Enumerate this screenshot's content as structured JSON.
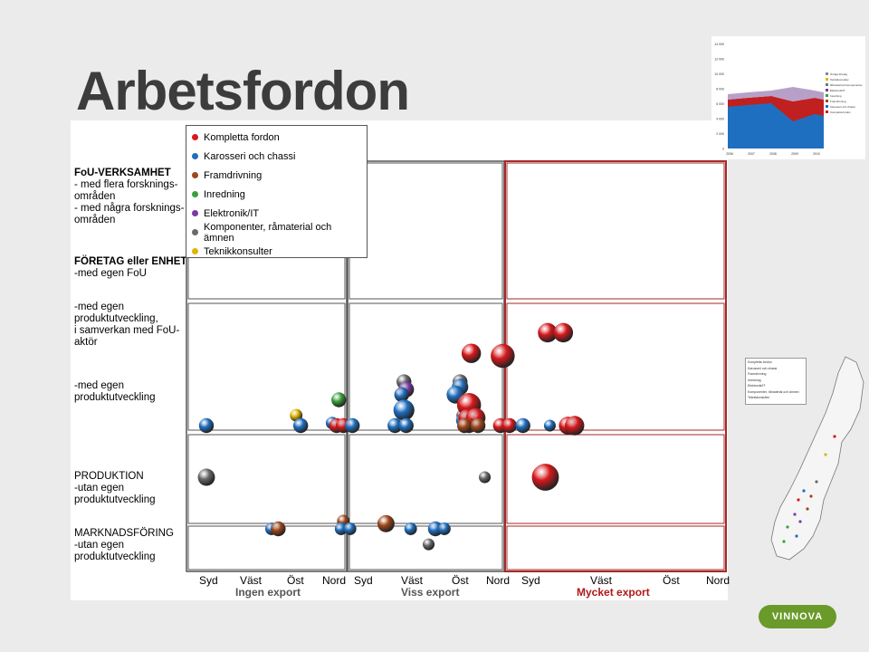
{
  "title": "Arbetsfordon",
  "row_labels": [
    {
      "lines": [
        "FoU-VERKSAMHET",
        "- med flera forsknings-",
        "områden",
        "- med några forsknings-",
        "områden"
      ],
      "bold_first": true
    },
    {
      "lines": [
        "FÖRETAG eller ENHET",
        "-med egen FoU"
      ],
      "bold_first": true
    },
    {
      "lines": [
        "-med egen",
        "produktutveckling,",
        "i samverkan med FoU-",
        "aktör"
      ],
      "bold_first": false
    },
    {
      "lines": [
        "-med egen",
        "produktutveckling"
      ],
      "bold_first": false
    },
    {
      "lines": [
        "PRODUKTION",
        "-utan egen",
        "produktutveckling"
      ],
      "bold_first": false
    },
    {
      "lines": [
        "MARKNADSFÖRING",
        "-utan egen",
        "produktutveckling"
      ],
      "bold_first": false
    }
  ],
  "legend": [
    {
      "label": "Kompletta fordon",
      "color": "#d7191c"
    },
    {
      "label": "Karosseri och chassi",
      "color": "#1f6fc0"
    },
    {
      "label": "Framdrivning",
      "color": "#a0461a"
    },
    {
      "label": "Inredning",
      "color": "#3aa13a"
    },
    {
      "label": "Elektronik/IT",
      "color": "#7a3aa8"
    },
    {
      "label": "Komponenter, råmaterial och ämnen",
      "color": "#6a6a6a"
    },
    {
      "label": "Teknikkonsulter",
      "color": "#e0b400"
    }
  ],
  "x_labels": [
    "Syd",
    "Väst",
    "Öst",
    "Nord",
    "Syd",
    "Väst",
    "Öst",
    "Nord",
    "Syd",
    "Väst",
    "Öst",
    "Nord"
  ],
  "groups": [
    {
      "label": "Ingen export",
      "color": "#555555"
    },
    {
      "label": "Viss export",
      "color": "#555555"
    },
    {
      "label": "Mycket export",
      "color": "#b01818"
    }
  ],
  "mini_chart": {
    "y_ticks": [
      "0",
      "2 000",
      "4 000",
      "6 000",
      "8 000",
      "10 000",
      "12 000",
      "14 000"
    ],
    "x_ticks": [
      "2006",
      "2007",
      "2008",
      "2009",
      "2010"
    ],
    "legend": [
      "Övriga företag",
      "Teknikkonsulter",
      "Råmaterial & komponenter",
      "Elektronik/IT",
      "Inredning",
      "Framdrivning",
      "Karosseri och chassi",
      "Kompletta fordon"
    ]
  },
  "logo_text": "VINNOVA",
  "chart_data": {
    "type": "scatter",
    "title": "Arbetsfordon",
    "x_categories": [
      "Ingen export Syd",
      "Ingen export Väst",
      "Ingen export Öst",
      "Ingen export Nord",
      "Viss export Syd",
      "Viss export Väst",
      "Viss export Öst",
      "Viss export Nord",
      "Mycket export Syd",
      "Mycket export Väst",
      "Mycket export Öst",
      "Mycket export Nord"
    ],
    "y_categories": [
      "MARKNADSFÖRING",
      "PRODUKTION",
      "-med egen produktutveckling",
      "-med egen produktutveckling, i samverkan med FoU-aktör",
      "FÖRETAG eller ENHET -med egen FoU",
      "FoU-VERKSAMHET"
    ],
    "points": [
      {
        "type": "Karosseri och chassi",
        "x": 0.0,
        "y": 2,
        "size": 1
      },
      {
        "type": "Teknikkonsulter",
        "x": 2.0,
        "y": 2.2,
        "size": 0.7
      },
      {
        "type": "Karosseri och chassi",
        "x": 2.1,
        "y": 2,
        "size": 1
      },
      {
        "type": "Inredning",
        "x": 2.95,
        "y": 2.5,
        "size": 1
      },
      {
        "type": "Karosseri och chassi",
        "x": 2.8,
        "y": 2.05,
        "size": 0.7
      },
      {
        "type": "Kompletta fordon",
        "x": 2.9,
        "y": 2,
        "size": 1
      },
      {
        "type": "Kompletta fordon",
        "x": 3.05,
        "y": 2,
        "size": 1
      },
      {
        "type": "Karosseri och chassi",
        "x": 3.25,
        "y": 2,
        "size": 1
      },
      {
        "type": "Komponenter, råmaterial och ämnen",
        "x": 4.4,
        "y": 2.85,
        "size": 1
      },
      {
        "type": "Elektronik/IT",
        "x": 4.45,
        "y": 2.7,
        "size": 1.1
      },
      {
        "type": "Karosseri och chassi",
        "x": 4.35,
        "y": 2.6,
        "size": 1
      },
      {
        "type": "Karosseri och chassi",
        "x": 4.4,
        "y": 2.3,
        "size": 1.8
      },
      {
        "type": "Karosseri och chassi",
        "x": 4.2,
        "y": 2,
        "size": 1
      },
      {
        "type": "Karosseri och chassi",
        "x": 4.45,
        "y": 2,
        "size": 1
      },
      {
        "type": "Komponenter, råmaterial och ämnen",
        "x": 5.65,
        "y": 2.85,
        "size": 1
      },
      {
        "type": "Karosseri och chassi",
        "x": 5.65,
        "y": 2.75,
        "size": 1.2
      },
      {
        "type": "Karosseri och chassi",
        "x": 5.55,
        "y": 2.6,
        "size": 1.4
      },
      {
        "type": "Komponenter, råmaterial och ämnen",
        "x": 5.7,
        "y": 2.2,
        "size": 0.6
      },
      {
        "type": "Karosseri och chassi",
        "x": 5.7,
        "y": 2.1,
        "size": 0.7
      },
      {
        "type": "Kompletta fordon",
        "x": 5.85,
        "y": 2.4,
        "size": 2.2
      },
      {
        "type": "Kompletta fordon",
        "x": 5.8,
        "y": 2.15,
        "size": 1.3
      },
      {
        "type": "Kompletta fordon",
        "x": 6.0,
        "y": 2.15,
        "size": 1.6
      },
      {
        "type": "Kompletta fordon",
        "x": 5.85,
        "y": 2,
        "size": 1
      },
      {
        "type": "Framdrivning",
        "x": 5.75,
        "y": 2,
        "size": 1
      },
      {
        "type": "Framdrivning",
        "x": 6.05,
        "y": 2,
        "size": 1
      },
      {
        "type": "Kompletta fordon",
        "x": 5.9,
        "y": 3.4,
        "size": 1.6
      },
      {
        "type": "Kompletta fordon",
        "x": 6.6,
        "y": 3.35,
        "size": 2.2
      },
      {
        "type": "Kompletta fordon",
        "x": 6.55,
        "y": 2,
        "size": 1
      },
      {
        "type": "Kompletta fordon",
        "x": 6.75,
        "y": 2,
        "size": 1
      },
      {
        "type": "Karosseri och chassi",
        "x": 7.05,
        "y": 2,
        "size": 1
      },
      {
        "type": "Kompletta fordon",
        "x": 7.6,
        "y": 3.8,
        "size": 1.6
      },
      {
        "type": "Kompletta fordon",
        "x": 7.95,
        "y": 3.8,
        "size": 1.6
      },
      {
        "type": "Karosseri och chassi",
        "x": 7.65,
        "y": 2,
        "size": 0.6
      },
      {
        "type": "Kompletta fordon",
        "x": 8.05,
        "y": 2,
        "size": 1.4
      },
      {
        "type": "Kompletta fordon",
        "x": 8.2,
        "y": 2,
        "size": 1.6
      },
      {
        "type": "Komponenter, råmaterial och ämnen",
        "x": 0.0,
        "y": 1,
        "size": 1.3
      },
      {
        "type": "Komponenter, råmaterial och ämnen",
        "x": 6.2,
        "y": 1,
        "size": 0.6
      },
      {
        "type": "Kompletta fordon",
        "x": 7.55,
        "y": 1,
        "size": 2.6
      },
      {
        "type": "Karosseri och chassi",
        "x": 1.45,
        "y": 0,
        "size": 0.7
      },
      {
        "type": "Framdrivning",
        "x": 1.6,
        "y": 0,
        "size": 1
      },
      {
        "type": "Framdrivning",
        "x": 3.05,
        "y": 0.15,
        "size": 0.7
      },
      {
        "type": "Karosseri och chassi",
        "x": 3.0,
        "y": 0,
        "size": 0.7
      },
      {
        "type": "Karosseri och chassi",
        "x": 3.2,
        "y": 0,
        "size": 0.7
      },
      {
        "type": "Framdrivning",
        "x": 4.0,
        "y": 0.1,
        "size": 1.3
      },
      {
        "type": "Karosseri och chassi",
        "x": 4.55,
        "y": 0,
        "size": 0.7
      },
      {
        "type": "Karosseri och chassi",
        "x": 5.1,
        "y": 0,
        "size": 1
      },
      {
        "type": "Karosseri och chassi",
        "x": 5.3,
        "y": 0,
        "size": 0.7
      },
      {
        "type": "Komponenter, råmaterial och ämnen",
        "x": 4.95,
        "y": -0.3,
        "size": 0.6
      }
    ]
  }
}
